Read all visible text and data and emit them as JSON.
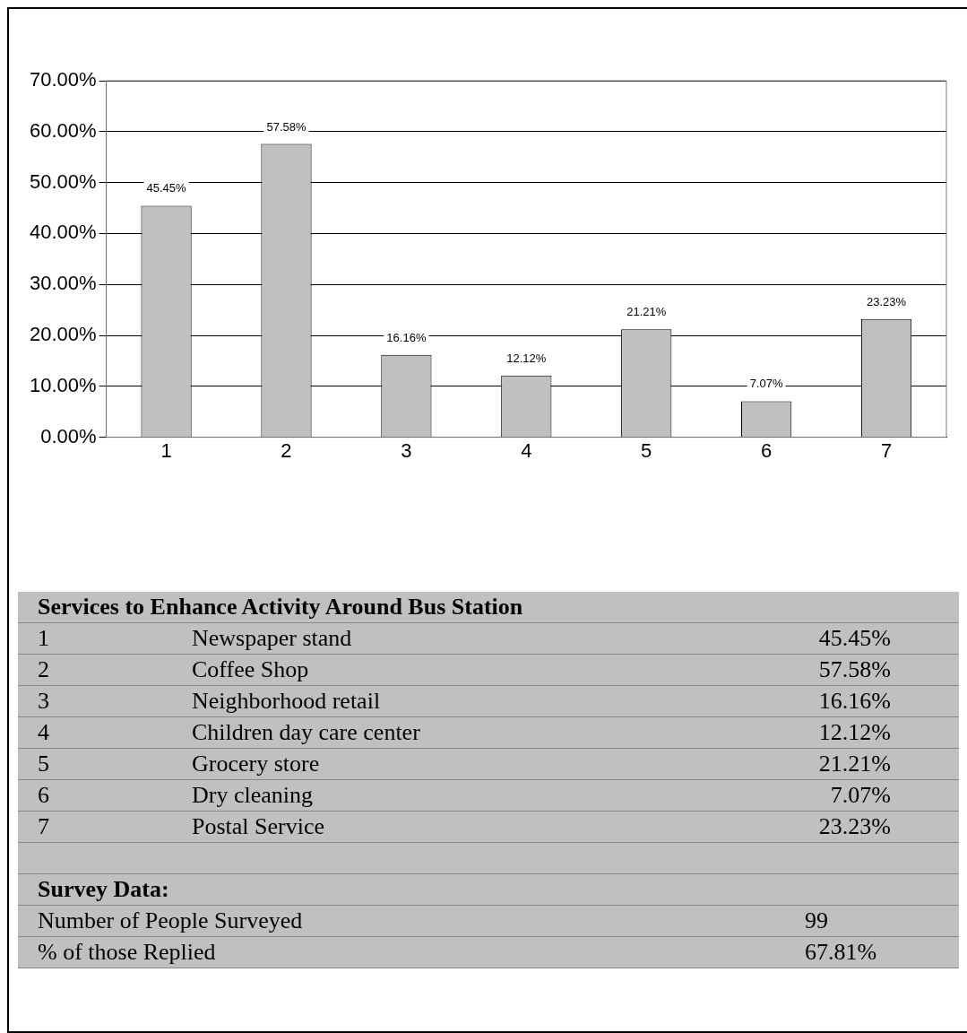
{
  "chart_data": {
    "type": "bar",
    "title": "Services to Enhance Activity Around Bus Station",
    "categories": [
      "1",
      "2",
      "3",
      "4",
      "5",
      "6",
      "7"
    ],
    "values": [
      45.45,
      57.58,
      16.16,
      12.12,
      21.21,
      7.07,
      23.23
    ],
    "value_labels": [
      "45.45%",
      "57.58%",
      "16.16%",
      "12.12%",
      "21.21%",
      "7.07%",
      "23.23%"
    ],
    "color": "#c0c0c0",
    "ylim": [
      0,
      70
    ],
    "yticks": [
      {
        "value": 0,
        "label": "0.00%"
      },
      {
        "value": 10,
        "label": "10.00%"
      },
      {
        "value": 20,
        "label": "20.00%"
      },
      {
        "value": 30,
        "label": "30.00%"
      },
      {
        "value": 40,
        "label": "40.00%"
      },
      {
        "value": 50,
        "label": "50.00%"
      },
      {
        "value": 60,
        "label": "60.00%"
      },
      {
        "value": 70,
        "label": "70.00%"
      }
    ],
    "grid": "y",
    "legend": false,
    "annotations": [
      "Newspaper stand",
      "Coffee Shop",
      "Neighborhood retail",
      "Children day care center",
      "Grocery store",
      "Dry cleaning",
      "Postal Service",
      "Survey Data:",
      "Number of People Surveyed",
      "99",
      "% of those Replied",
      "67.81%"
    ]
  }
}
